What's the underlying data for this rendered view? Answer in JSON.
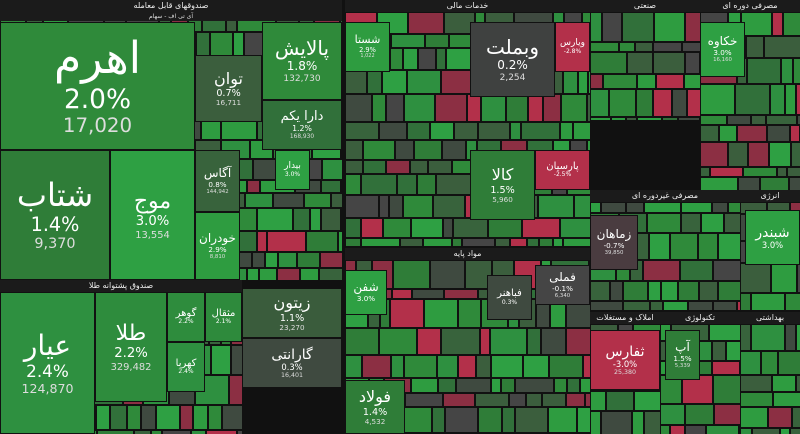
{
  "sectors": [
    {
      "title": "صندوقهای قابل معامله",
      "subtitle": "آی تی اف - سهام"
    },
    {
      "title": "صندوق پشتوانه طلا"
    },
    {
      "title": "خدمات مالی"
    },
    {
      "title": "مواد پایه"
    },
    {
      "title": "صنعتی"
    },
    {
      "title": "مصرفی دوره ای"
    },
    {
      "title": "مصرفی غیردوره ای"
    },
    {
      "title": "انرژی"
    },
    {
      "title": "املاک و مستغلات"
    },
    {
      "title": "تکنولوژی"
    },
    {
      "title": "بهداشتی"
    }
  ],
  "tiles": [
    {
      "name": "اهرم",
      "change": "2.0%",
      "value": "17,020",
      "color": "#2f8a3a"
    },
    {
      "name": "پالایش",
      "change": "1.8%",
      "value": "132,730",
      "color": "#2f8a3a"
    },
    {
      "name": "توان",
      "change": "0.7%",
      "value": "16,711",
      "color": "#3b5e3d"
    },
    {
      "name": "دارا یکم",
      "change": "1.2%",
      "value": "168,930",
      "color": "#31703a"
    },
    {
      "name": "شتاب",
      "change": "1.4%",
      "value": "9,370",
      "color": "#2f7d38"
    },
    {
      "name": "موج",
      "change": "3.0%",
      "value": "13,554",
      "color": "#2ea043"
    },
    {
      "name": "آگاس",
      "change": "0.8%",
      "value": "144,942",
      "color": "#38633c"
    },
    {
      "name": "خودران",
      "change": "2.9%",
      "value": "8,810",
      "color": "#2e9c40"
    },
    {
      "name": "بیدار",
      "change": "3.0%",
      "color": "#2ea043"
    },
    {
      "name": "عیار",
      "change": "2.4%",
      "value": "124,870",
      "color": "#2e9040"
    },
    {
      "name": "طلا",
      "change": "2.2%",
      "value": "329,482",
      "color": "#2e8c3d"
    },
    {
      "name": "گوهر",
      "change": "2.2%",
      "color": "#2e8c3d"
    },
    {
      "name": "مثقال",
      "change": "2.1%",
      "color": "#2e8a3c"
    },
    {
      "name": "کهربا",
      "change": "2.4%",
      "color": "#2e9040"
    },
    {
      "name": "زیتون",
      "change": "1.1%",
      "value": "23,270",
      "color": "#3a5c3c"
    },
    {
      "name": "گارانتی",
      "change": "0.3%",
      "value": "16,401",
      "color": "#3f4a40"
    },
    {
      "name": "وبملت",
      "change": "0.2%",
      "value": "2,254",
      "color": "#3f4140"
    },
    {
      "name": "ویارس",
      "change": "-2.8%",
      "color": "#b3304a"
    },
    {
      "name": "شستا",
      "change": "2.9%",
      "value": "1,022",
      "color": "#2e9c40"
    },
    {
      "name": "کالا",
      "change": "1.5%",
      "value": "5,960",
      "color": "#2f7d38"
    },
    {
      "name": "پارسیان",
      "change": "-2.5%",
      "color": "#b3304a"
    },
    {
      "name": "شفن",
      "change": "3.0%",
      "color": "#2ea043"
    },
    {
      "name": "فولاد",
      "change": "1.4%",
      "value": "4,532",
      "color": "#2f7d38"
    },
    {
      "name": "فملی",
      "change": "-0.1%",
      "value": "6,340",
      "color": "#454545"
    },
    {
      "name": "فباهنر",
      "change": "0.3%",
      "color": "#3f4a40"
    },
    {
      "name": "خکاوه",
      "change": "3.0%",
      "value": "16,160",
      "color": "#2ea043"
    },
    {
      "name": "ثفارس",
      "change": "-3.0%",
      "value": "25,380",
      "color": "#b3304a"
    },
    {
      "name": "آپ",
      "change": "1.5%",
      "value": "5,339",
      "color": "#2f7d38"
    },
    {
      "name": "شبندر",
      "change": "3.0%",
      "color": "#2ea043"
    },
    {
      "name": "زماهان",
      "change": "-0.7%",
      "value": "39,850",
      "color": "#4a3c40"
    }
  ]
}
